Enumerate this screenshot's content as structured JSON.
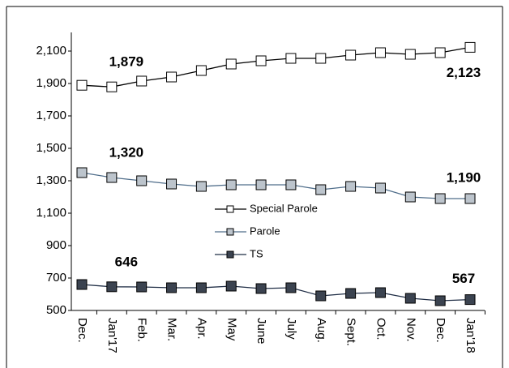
{
  "chart_data": {
    "type": "line",
    "categories": [
      "Dec.",
      "Jan'17",
      "Feb.",
      "Mar.",
      "Apr.",
      "May",
      "June",
      "July",
      "Aug.",
      "Sept.",
      "Oct.",
      "Nov.",
      "Dec.",
      "Jan'18"
    ],
    "ylim": [
      500,
      2200
    ],
    "yticks": [
      500,
      700,
      900,
      {
        "value": 1100,
        "label": "1,100"
      },
      {
        "value": 1300,
        "label": "1,300"
      },
      {
        "value": 1500,
        "label": "1,500"
      },
      {
        "value": 1700,
        "label": "1,700"
      },
      {
        "value": 1900,
        "label": "1,900"
      },
      {
        "value": 2100,
        "label": "2,100"
      }
    ],
    "series": [
      {
        "name": "Special Parole",
        "color": "#000000",
        "marker_fill": "#ffffff",
        "values": [
          1889,
          1879,
          1915,
          1940,
          1980,
          2020,
          2040,
          2055,
          2055,
          2075,
          2090,
          2080,
          2090,
          2123
        ],
        "value_labels": [
          null,
          "1,879",
          null,
          null,
          null,
          null,
          null,
          null,
          null,
          null,
          null,
          null,
          null,
          "2,123"
        ]
      },
      {
        "name": "Parole",
        "color": "#4f6d8a",
        "marker_fill": "#bcc4cc",
        "values": [
          1350,
          1320,
          1300,
          1280,
          1265,
          1275,
          1275,
          1275,
          1245,
          1265,
          1255,
          1200,
          1190,
          1190
        ],
        "value_labels": [
          null,
          "1,320",
          null,
          null,
          null,
          null,
          null,
          null,
          null,
          null,
          null,
          null,
          null,
          "1,190"
        ]
      },
      {
        "name": "TS",
        "color": "#1f2d45",
        "marker_fill": "#3b4350",
        "values": [
          660,
          646,
          645,
          640,
          640,
          650,
          635,
          640,
          590,
          605,
          610,
          575,
          560,
          567
        ],
        "value_labels": [
          null,
          "646",
          null,
          null,
          null,
          null,
          null,
          null,
          null,
          null,
          null,
          null,
          null,
          "567"
        ]
      }
    ]
  }
}
